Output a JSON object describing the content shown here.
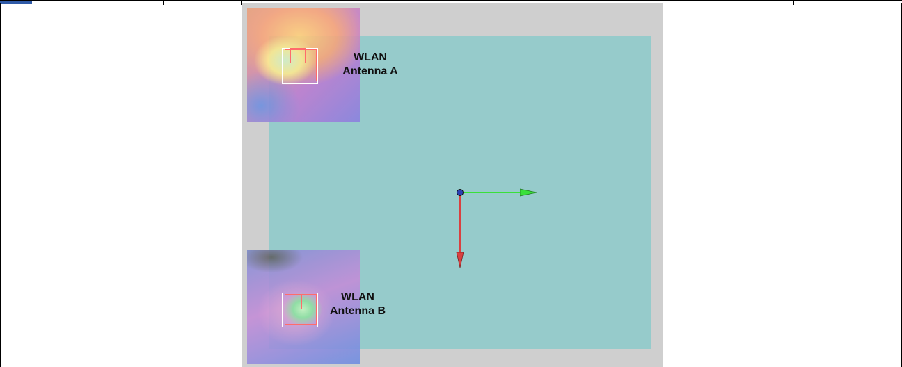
{
  "labels": {
    "antenna_a_line1": "WLAN",
    "antenna_a_line2": "Antenna A",
    "antenna_b_line1": "WLAN",
    "antenna_b_line2": "Antenna B"
  },
  "colors": {
    "board": "#96cbcb",
    "viewport_bg": "#cfcfcf",
    "x_axis": "#39e03a",
    "y_axis": "#d94040",
    "origin": "#2b3fb3",
    "selected_cell": "#2f5aa7"
  },
  "icons": {
    "origin": "origin-dot-icon",
    "x_arrow": "x-axis-arrow-icon",
    "y_arrow": "y-axis-arrow-icon"
  }
}
